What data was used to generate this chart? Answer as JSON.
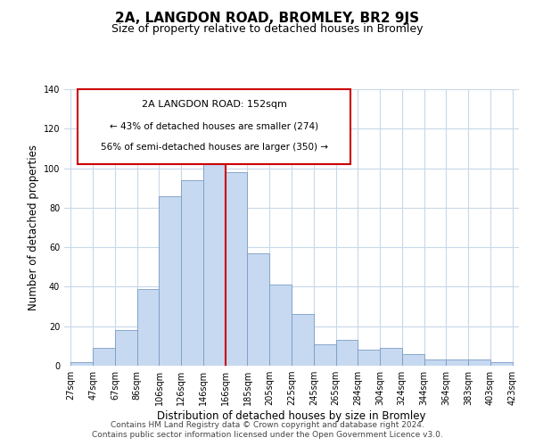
{
  "title": "2A, LANGDON ROAD, BROMLEY, BR2 9JS",
  "subtitle": "Size of property relative to detached houses in Bromley",
  "xlabel": "Distribution of detached houses by size in Bromley",
  "ylabel": "Number of detached properties",
  "bar_labels": [
    "27sqm",
    "47sqm",
    "67sqm",
    "86sqm",
    "106sqm",
    "126sqm",
    "146sqm",
    "166sqm",
    "185sqm",
    "205sqm",
    "225sqm",
    "245sqm",
    "265sqm",
    "284sqm",
    "304sqm",
    "324sqm",
    "344sqm",
    "364sqm",
    "383sqm",
    "403sqm",
    "423sqm"
  ],
  "bar_values": [
    2,
    9,
    18,
    39,
    86,
    94,
    111,
    98,
    57,
    41,
    26,
    11,
    13,
    8,
    9,
    6,
    3,
    3,
    3,
    2
  ],
  "bar_color": "#c6d9f0",
  "bar_edge_color": "#7a9cc4",
  "vline_x_index": 7,
  "vline_color": "#cc0000",
  "ylim": [
    0,
    140
  ],
  "yticks": [
    0,
    20,
    40,
    60,
    80,
    100,
    120,
    140
  ],
  "annotation_title": "2A LANGDON ROAD: 152sqm",
  "annotation_line1": "← 43% of detached houses are smaller (274)",
  "annotation_line2": "56% of semi-detached houses are larger (350) →",
  "annotation_box_color": "#ffffff",
  "annotation_box_edge": "#cc0000",
  "footer1": "Contains HM Land Registry data © Crown copyright and database right 2024.",
  "footer2": "Contains public sector information licensed under the Open Government Licence v3.0.",
  "background_color": "#ffffff",
  "grid_color": "#c8d8e8",
  "title_fontsize": 11,
  "subtitle_fontsize": 9,
  "axis_label_fontsize": 8.5,
  "tick_fontsize": 7,
  "annotation_title_fontsize": 8,
  "annotation_text_fontsize": 7.5,
  "footer_fontsize": 6.5
}
